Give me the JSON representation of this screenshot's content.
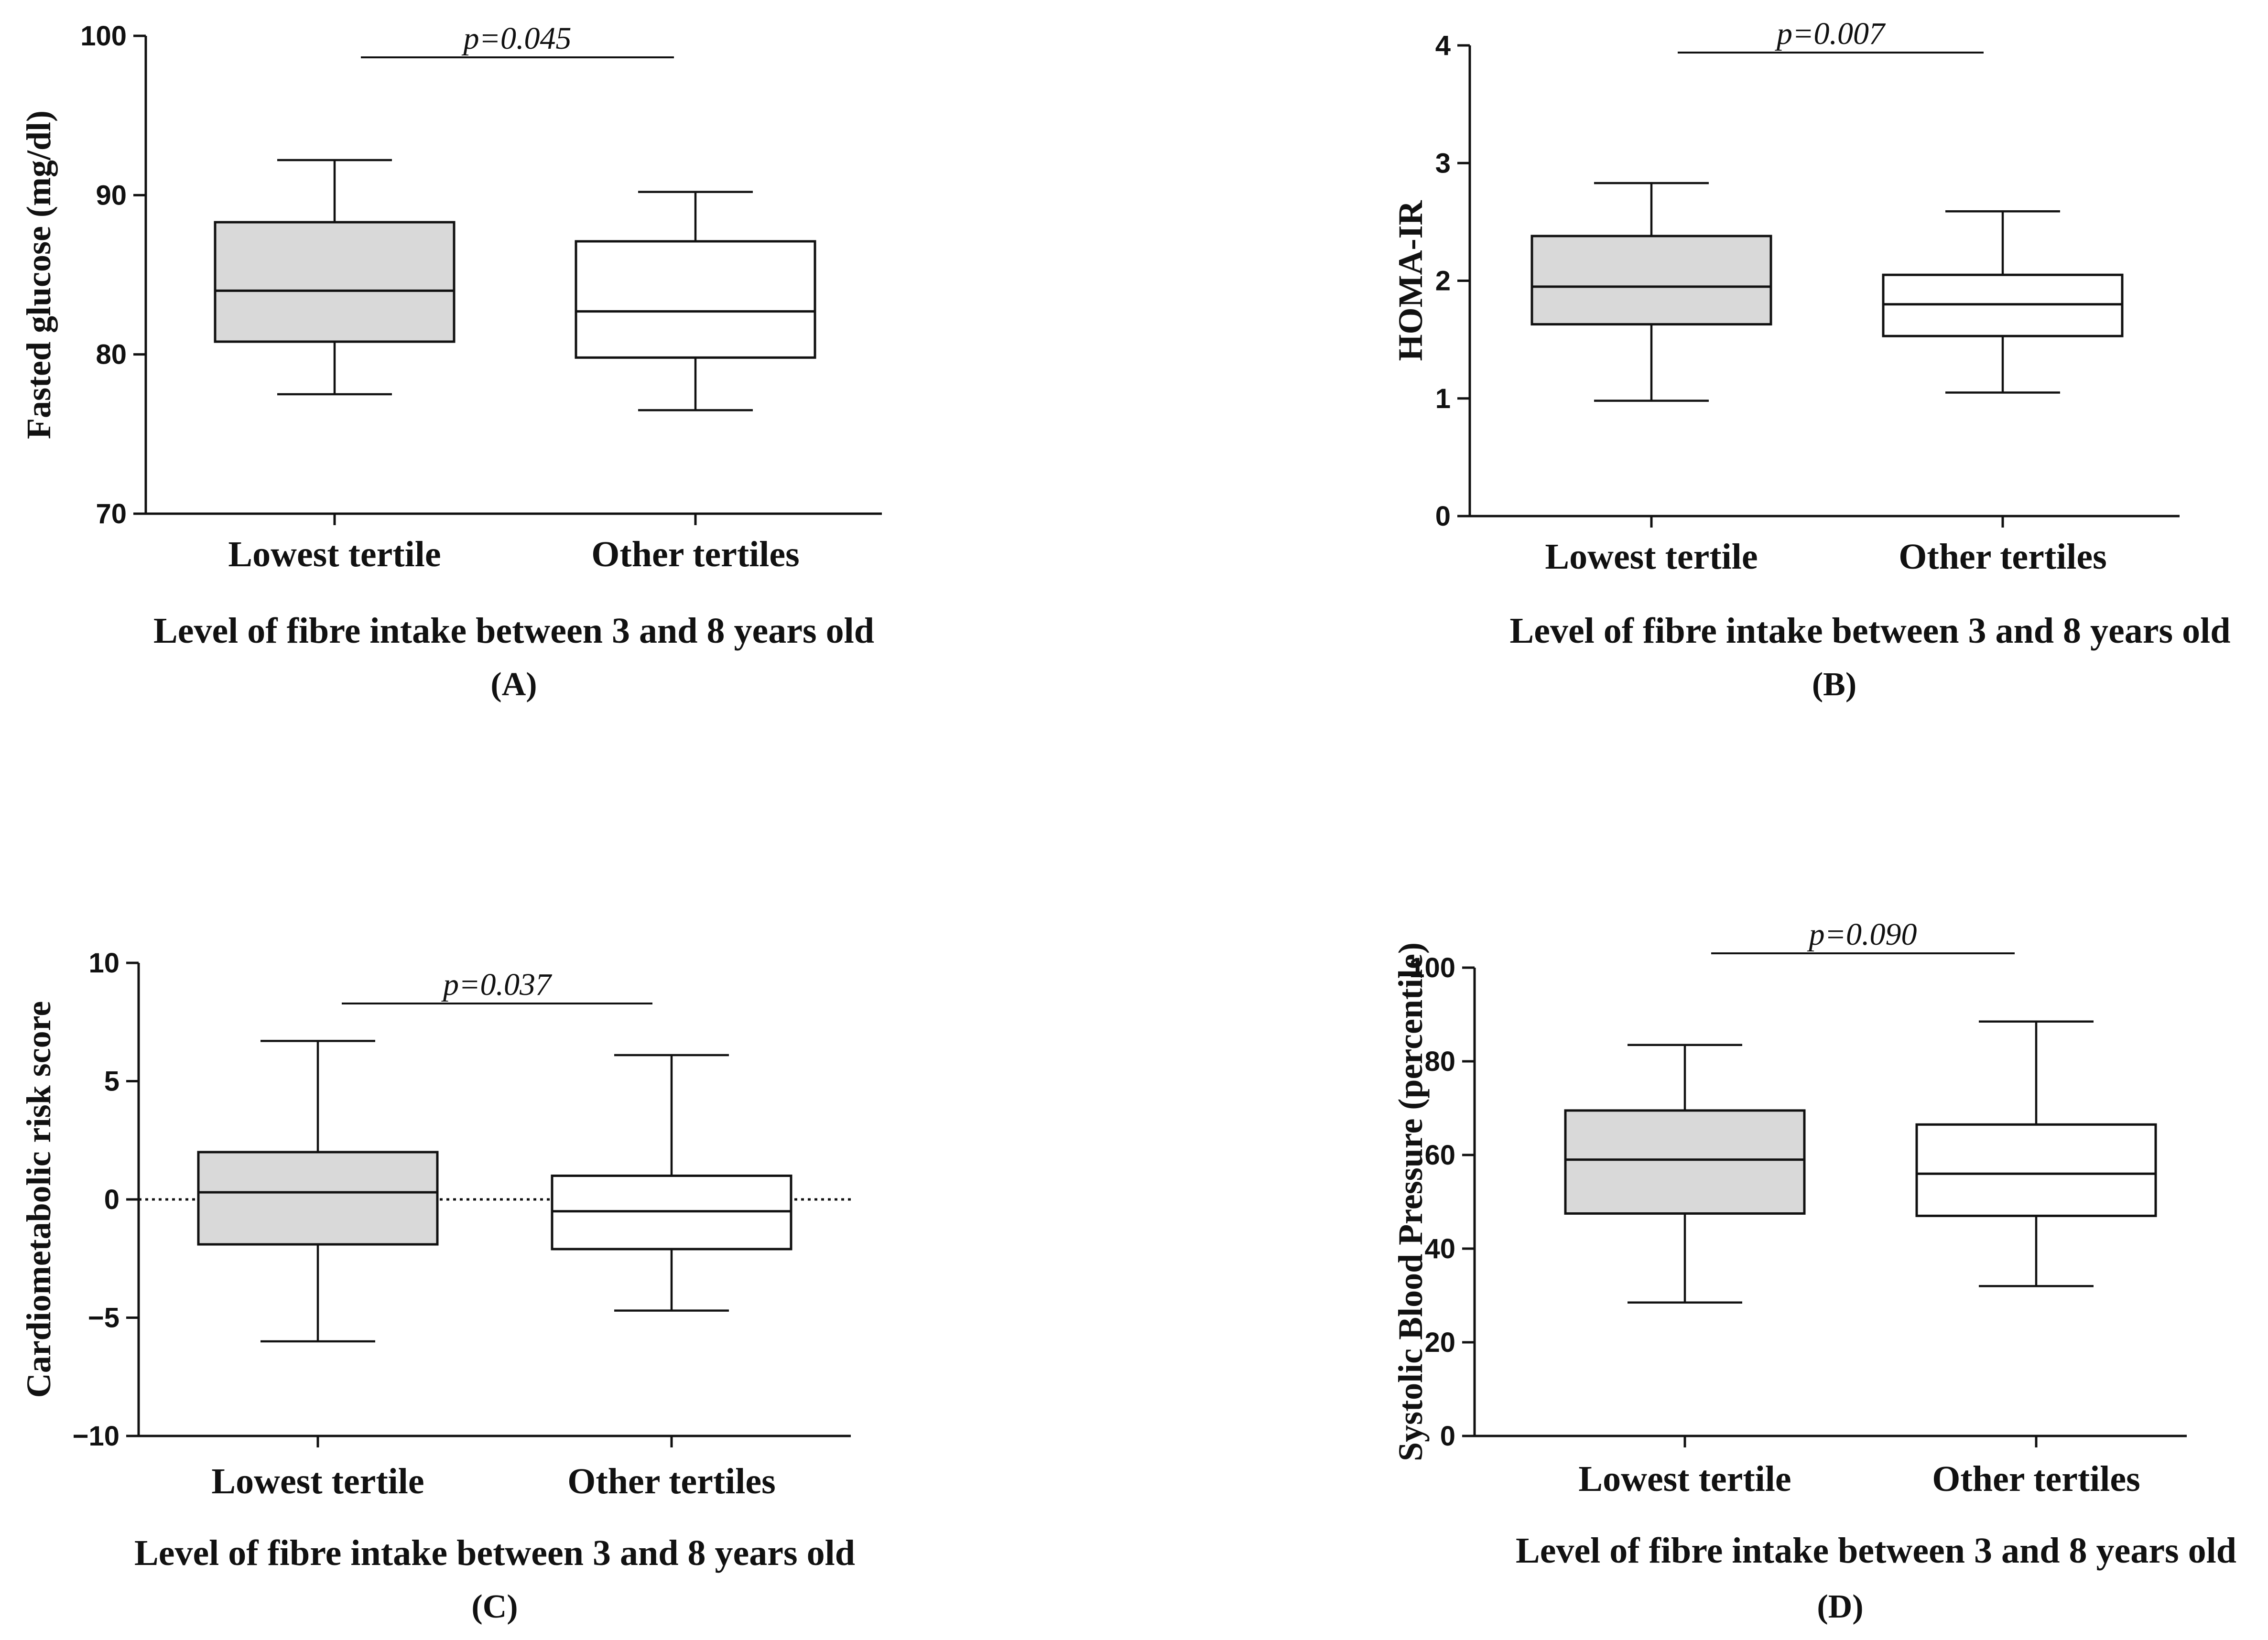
{
  "chart_data": [
    {
      "panel": "(A)",
      "type": "box",
      "ylabel": "Fasted glucose (mg/dl)",
      "xlabel": "Level of fibre intake between 3 and 8 years old",
      "categories": [
        "Lowest tertile",
        "Other tertiles"
      ],
      "ylim": [
        70,
        100
      ],
      "yticks": [
        70,
        80,
        90,
        100
      ],
      "annotation": "p=0.045",
      "boxes": [
        {
          "min": 77.5,
          "q1": 80.8,
          "median": 84.0,
          "q3": 88.3,
          "max": 92.2,
          "fill": "#d9d9d9"
        },
        {
          "min": 76.5,
          "q1": 79.8,
          "median": 82.7,
          "q3": 87.1,
          "max": 90.2,
          "fill": "#ffffff"
        }
      ],
      "zero_line": false
    },
    {
      "panel": "(B)",
      "type": "box",
      "ylabel": "HOMA-IR",
      "xlabel": "Level of fibre intake between 3 and 8 years old",
      "categories": [
        "Lowest tertile",
        "Other tertiles"
      ],
      "ylim": [
        0,
        4
      ],
      "yticks": [
        0,
        1,
        2,
        3,
        4
      ],
      "annotation": "p=0.007",
      "boxes": [
        {
          "min": 0.98,
          "q1": 1.63,
          "median": 1.95,
          "q3": 2.38,
          "max": 2.83,
          "fill": "#d9d9d9"
        },
        {
          "min": 1.05,
          "q1": 1.53,
          "median": 1.8,
          "q3": 2.05,
          "max": 2.59,
          "fill": "#ffffff"
        }
      ],
      "zero_line": false
    },
    {
      "panel": "(C)",
      "type": "box",
      "ylabel": "Cardiometabolic risk score",
      "xlabel": "Level of fibre intake between 3 and 8 years old",
      "categories": [
        "Lowest tertile",
        "Other tertiles"
      ],
      "ylim": [
        -10,
        10
      ],
      "yticks": [
        -10,
        -5,
        0,
        5,
        10
      ],
      "ytick_labels": [
        "−10",
        "−5",
        "0",
        "5",
        "10"
      ],
      "annotation": "p=0.037",
      "boxes": [
        {
          "min": -6.0,
          "q1": -1.9,
          "median": 0.3,
          "q3": 2.0,
          "max": 6.7,
          "fill": "#d9d9d9"
        },
        {
          "min": -4.7,
          "q1": -2.1,
          "median": -0.5,
          "q3": 1.0,
          "max": 6.1,
          "fill": "#ffffff"
        }
      ],
      "zero_line": true
    },
    {
      "panel": "(D)",
      "type": "box",
      "ylabel": "Systolic Blood Pressure (percentile)",
      "xlabel": "Level of fibre intake between 3 and 8 years old",
      "categories": [
        "Lowest tertile",
        "Other tertiles"
      ],
      "ylim": [
        0,
        100
      ],
      "yticks": [
        0,
        20,
        40,
        60,
        80,
        100
      ],
      "annotation": "p=0.090",
      "boxes": [
        {
          "min": 28.5,
          "q1": 47.5,
          "median": 59.0,
          "q3": 69.5,
          "max": 83.5,
          "fill": "#d9d9d9"
        },
        {
          "min": 32.0,
          "q1": 47.0,
          "median": 56.0,
          "q3": 66.5,
          "max": 88.5,
          "fill": "#ffffff"
        }
      ],
      "zero_line": false
    }
  ]
}
